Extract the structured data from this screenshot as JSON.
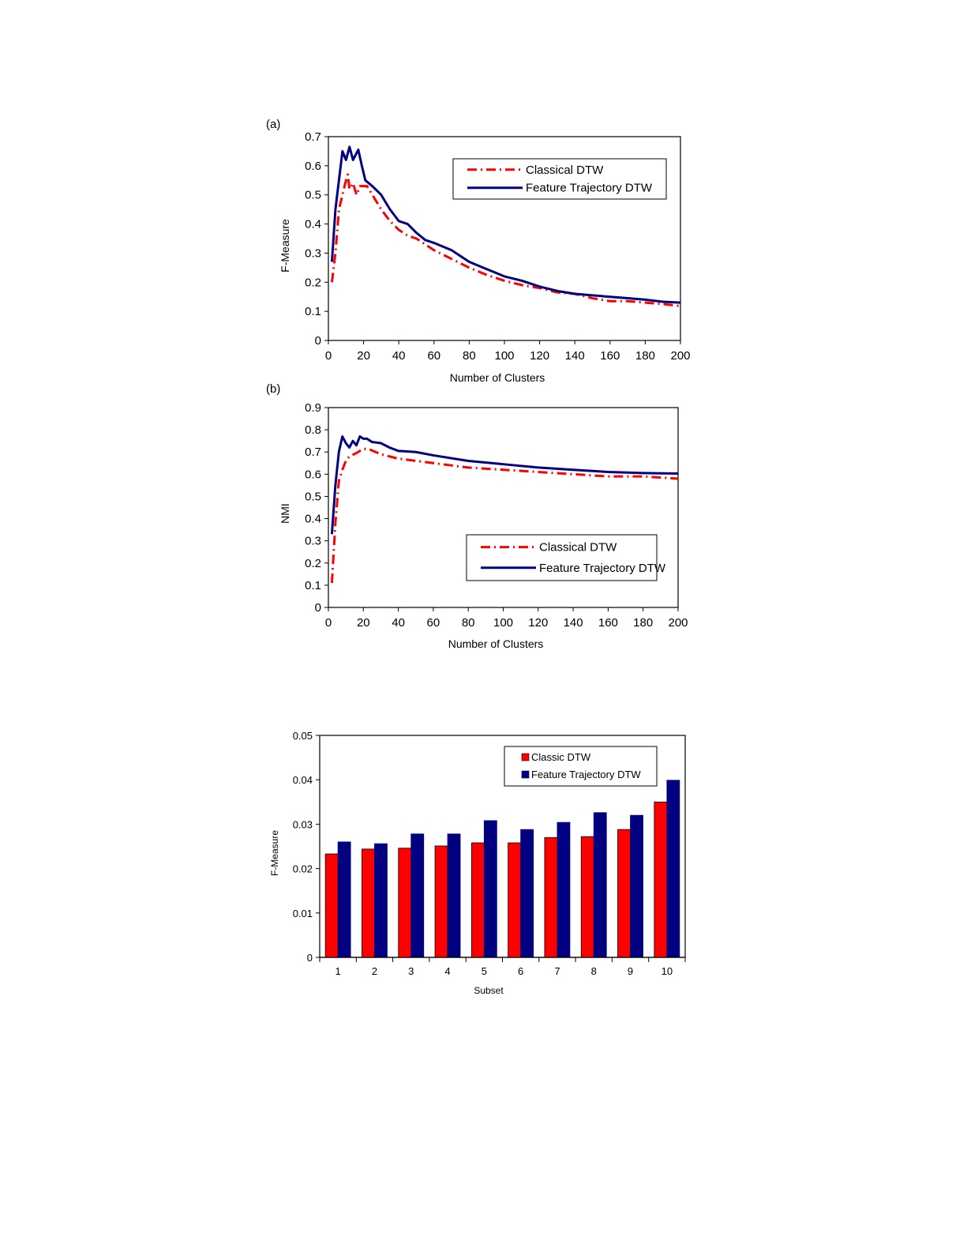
{
  "chart_data": [
    {
      "type": "line",
      "panel_label": "(a)",
      "xlabel": "Number of Clusters",
      "ylabel": "F-Measure",
      "xlim": [
        0,
        200
      ],
      "ylim": [
        0,
        0.7
      ],
      "xticks": [
        "0",
        "20",
        "40",
        "60",
        "80",
        "100",
        "120",
        "140",
        "160",
        "180",
        "200"
      ],
      "yticks": [
        "0",
        "0.1",
        "0.2",
        "0.3",
        "0.4",
        "0.5",
        "0.6",
        "0.7"
      ],
      "grid": false,
      "legend_position": "top-right",
      "series": [
        {
          "name": "Classical DTW",
          "color": "#ff0000",
          "style": "dash-dot",
          "x": [
            2,
            4,
            6,
            8,
            10,
            11,
            12,
            14,
            16,
            18,
            22,
            25,
            30,
            35,
            40,
            45,
            50,
            60,
            70,
            80,
            90,
            100,
            110,
            120,
            130,
            140,
            150,
            160,
            170,
            180,
            190,
            200
          ],
          "y": [
            0.2,
            0.3,
            0.45,
            0.5,
            0.55,
            0.57,
            0.52,
            0.54,
            0.5,
            0.53,
            0.53,
            0.5,
            0.45,
            0.41,
            0.38,
            0.36,
            0.35,
            0.31,
            0.28,
            0.25,
            0.225,
            0.205,
            0.19,
            0.18,
            0.165,
            0.16,
            0.145,
            0.135,
            0.135,
            0.13,
            0.125,
            0.118
          ]
        },
        {
          "name": "Feature Trajectory  DTW",
          "color": "#000080",
          "style": "solid",
          "x": [
            2,
            4,
            6,
            8,
            10,
            12,
            14,
            17,
            19,
            21,
            25,
            30,
            35,
            40,
            45,
            50,
            55,
            60,
            70,
            80,
            90,
            100,
            110,
            120,
            130,
            140,
            150,
            160,
            170,
            180,
            190,
            200
          ],
          "y": [
            0.27,
            0.45,
            0.55,
            0.65,
            0.62,
            0.665,
            0.62,
            0.655,
            0.6,
            0.55,
            0.53,
            0.5,
            0.45,
            0.41,
            0.4,
            0.37,
            0.345,
            0.335,
            0.31,
            0.27,
            0.245,
            0.22,
            0.205,
            0.185,
            0.17,
            0.16,
            0.155,
            0.15,
            0.145,
            0.14,
            0.133,
            0.13
          ]
        }
      ]
    },
    {
      "type": "line",
      "panel_label": "(b)",
      "xlabel": "Number of Clusters",
      "ylabel": "NMI",
      "xlim": [
        0,
        200
      ],
      "ylim": [
        0,
        0.9
      ],
      "xticks": [
        "0",
        "20",
        "40",
        "60",
        "80",
        "100",
        "120",
        "140",
        "160",
        "180",
        "200"
      ],
      "yticks": [
        "0",
        "0.1",
        "0.2",
        "0.3",
        "0.4",
        "0.5",
        "0.6",
        "0.7",
        "0.8",
        "0.9"
      ],
      "grid": false,
      "legend_position": "bottom-right",
      "series": [
        {
          "name": "Classical DTW",
          "color": "#ff0000",
          "style": "dash-dot",
          "x": [
            2,
            4,
            6,
            8,
            10,
            12,
            16,
            20,
            24,
            30,
            40,
            60,
            80,
            100,
            120,
            140,
            160,
            180,
            200
          ],
          "y": [
            0.11,
            0.38,
            0.57,
            0.62,
            0.66,
            0.68,
            0.695,
            0.715,
            0.71,
            0.69,
            0.67,
            0.65,
            0.63,
            0.62,
            0.61,
            0.6,
            0.59,
            0.59,
            0.58
          ]
        },
        {
          "name": "Feature Trajectory DTW",
          "color": "#000080",
          "style": "solid",
          "x": [
            2,
            4,
            6,
            8,
            10,
            12,
            14,
            16,
            18,
            20,
            22,
            25,
            30,
            35,
            40,
            50,
            60,
            80,
            100,
            120,
            140,
            160,
            180,
            200
          ],
          "y": [
            0.33,
            0.55,
            0.7,
            0.77,
            0.74,
            0.72,
            0.75,
            0.73,
            0.77,
            0.76,
            0.76,
            0.745,
            0.74,
            0.72,
            0.705,
            0.7,
            0.685,
            0.66,
            0.645,
            0.63,
            0.62,
            0.61,
            0.605,
            0.603
          ]
        }
      ]
    },
    {
      "type": "bar",
      "xlabel": "Subset",
      "ylabel": "F-Measure",
      "ylim": [
        0,
        0.05
      ],
      "yticks": [
        "0",
        "0.01",
        "0.02",
        "0.03",
        "0.04",
        "0.05"
      ],
      "categories": [
        "1",
        "2",
        "3",
        "4",
        "5",
        "6",
        "7",
        "8",
        "9",
        "10"
      ],
      "grid": false,
      "legend_position": "top-right",
      "series": [
        {
          "name": "Classic DTW",
          "color": "#ff0000",
          "values": [
            0.0233,
            0.0244,
            0.0246,
            0.0251,
            0.0258,
            0.0258,
            0.027,
            0.0272,
            0.0288,
            0.035
          ]
        },
        {
          "name": "Feature Trajectory DTW",
          "color": "#000080",
          "values": [
            0.026,
            0.0256,
            0.0278,
            0.0278,
            0.0308,
            0.0288,
            0.0304,
            0.0326,
            0.032,
            0.0399
          ]
        }
      ]
    }
  ]
}
